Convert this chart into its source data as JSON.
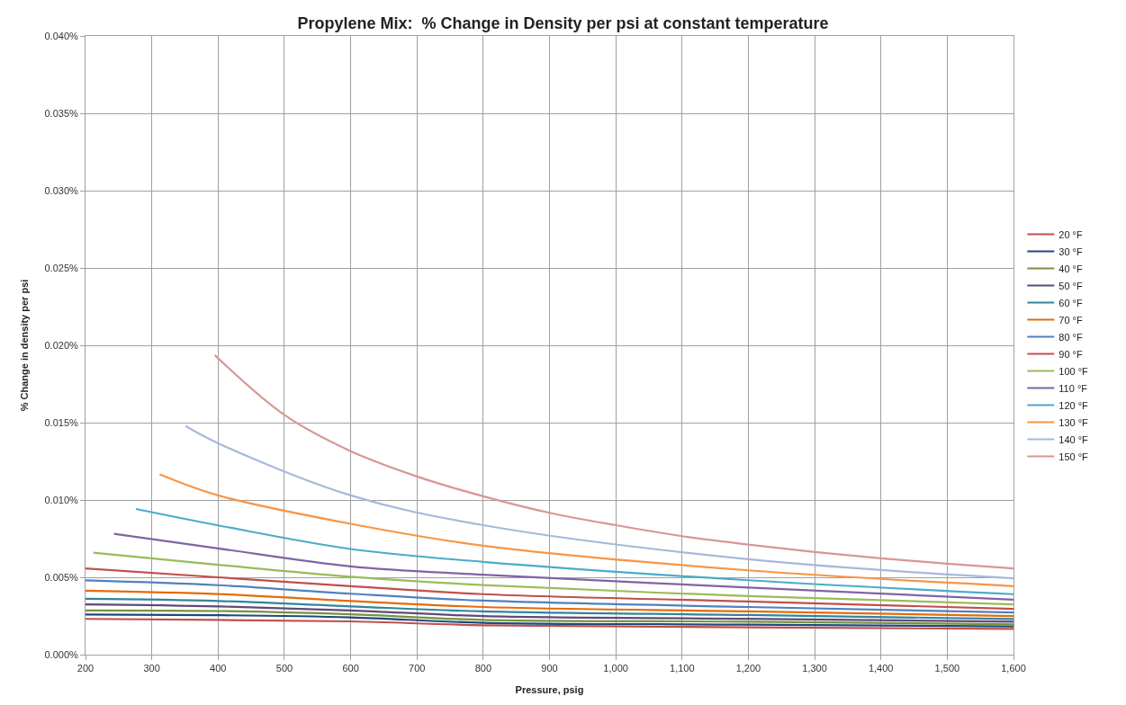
{
  "chart_data": {
    "type": "line",
    "title": "Propylene Mix:  % Change in Density per psi at constant temperature",
    "xlabel": "Pressure, psig",
    "ylabel": "% Change in density per psi",
    "xlim": [
      200,
      1600
    ],
    "xticks": [
      200,
      300,
      400,
      500,
      600,
      700,
      800,
      900,
      {
        "value": 1000,
        "label": "1,000"
      },
      {
        "value": 1100,
        "label": "1,100"
      },
      {
        "value": 1200,
        "label": "1,200"
      },
      {
        "value": 1300,
        "label": "1,300"
      },
      {
        "value": 1400,
        "label": "1,400"
      },
      {
        "value": 1500,
        "label": "1,500"
      },
      {
        "value": 1600,
        "label": "1,600"
      }
    ],
    "ylim": [
      0,
      0.04
    ],
    "yticks": [
      {
        "value": 0,
        "label": "0.000%"
      },
      {
        "value": 0.005,
        "label": "0.005%"
      },
      {
        "value": 0.01,
        "label": "0.010%"
      },
      {
        "value": 0.015,
        "label": "0.015%"
      },
      {
        "value": 0.02,
        "label": "0.020%"
      },
      {
        "value": 0.025,
        "label": "0.025%"
      },
      {
        "value": 0.03,
        "label": "0.030%"
      },
      {
        "value": 0.035,
        "label": "0.035%"
      },
      {
        "value": 0.04,
        "label": "0.040%"
      }
    ],
    "grid": true,
    "legend": "right",
    "marker": "none",
    "line_style": "solid",
    "series": [
      {
        "name": "20 °F",
        "color": "#c0504d",
        "x": [
          200,
          400,
          600,
          800,
          1200,
          1600
        ],
        "values": [
          0.00231,
          0.00224,
          0.00215,
          0.0019,
          0.00177,
          0.00166
        ]
      },
      {
        "name": "30 °F",
        "color": "#1f497d",
        "x": [
          200,
          400,
          600,
          800,
          1200,
          1600
        ],
        "values": [
          0.00259,
          0.00255,
          0.00241,
          0.00206,
          0.00194,
          0.00182
        ]
      },
      {
        "name": "40 °F",
        "color": "#77933c",
        "x": [
          200,
          400,
          600,
          800,
          1200,
          1600
        ],
        "values": [
          0.00286,
          0.00282,
          0.00261,
          0.00225,
          0.00213,
          0.00196
        ]
      },
      {
        "name": "50 °F",
        "color": "#5f497a",
        "x": [
          200,
          400,
          600,
          800,
          1200,
          1600
        ],
        "values": [
          0.00325,
          0.00312,
          0.00286,
          0.00249,
          0.00232,
          0.00213
        ]
      },
      {
        "name": "60 °F",
        "color": "#31859c",
        "x": [
          200,
          400,
          600,
          800,
          1200,
          1600
        ],
        "values": [
          0.00361,
          0.00347,
          0.00312,
          0.0028,
          0.00256,
          0.0023
        ]
      },
      {
        "name": "70 °F",
        "color": "#e46c0a",
        "x": [
          200,
          400,
          600,
          800,
          1200,
          1600
        ],
        "values": [
          0.00414,
          0.00392,
          0.00347,
          0.00308,
          0.0028,
          0.00249
        ]
      },
      {
        "name": "80 °F",
        "color": "#4f81bd",
        "x": [
          200,
          400,
          600,
          800,
          1200,
          1600
        ],
        "values": [
          0.0048,
          0.00449,
          0.00394,
          0.00349,
          0.00308,
          0.00272
        ]
      },
      {
        "name": "90 °F",
        "color": "#c0504d",
        "x": [
          200,
          400,
          600,
          800,
          1200,
          1600
        ],
        "values": [
          0.00557,
          0.005,
          0.00443,
          0.00391,
          0.00344,
          0.00296
        ]
      },
      {
        "name": "100 °F",
        "color": "#9bbb59",
        "x": [
          212,
          400,
          600,
          800,
          1200,
          1600
        ],
        "values": [
          0.00659,
          0.00581,
          0.00504,
          0.0045,
          0.00379,
          0.00325
        ]
      },
      {
        "name": "110 °F",
        "color": "#8064a2",
        "x": [
          243,
          400,
          600,
          800,
          1200,
          1600
        ],
        "values": [
          0.00781,
          0.00687,
          0.00571,
          0.00517,
          0.00434,
          0.00355
        ]
      },
      {
        "name": "120 °F",
        "color": "#4bacc6",
        "x": [
          276,
          400,
          600,
          800,
          1200,
          1600
        ],
        "values": [
          0.00942,
          0.00836,
          0.00683,
          0.006,
          0.00481,
          0.00391
        ]
      },
      {
        "name": "130 °F",
        "color": "#f79646",
        "x": [
          312,
          400,
          600,
          800,
          1200,
          1600
        ],
        "values": [
          0.01166,
          0.0103,
          0.00846,
          0.00704,
          0.00545,
          0.00443
        ]
      },
      {
        "name": "140 °F",
        "color": "#a6b9dc",
        "x": [
          351,
          400,
          600,
          800,
          1200,
          1600
        ],
        "values": [
          0.01478,
          0.01367,
          0.0103,
          0.00837,
          0.00617,
          0.00493
        ]
      },
      {
        "name": "150 °F",
        "color": "#d99694",
        "x": [
          395,
          500,
          600,
          700,
          800,
          900,
          1000,
          1100,
          1200,
          1300,
          1400,
          1500,
          1600
        ],
        "values": [
          0.01937,
          0.0155,
          0.01316,
          0.01152,
          0.01024,
          0.00917,
          0.00837,
          0.00766,
          0.00712,
          0.00664,
          0.00623,
          0.00588,
          0.00557
        ]
      }
    ]
  }
}
